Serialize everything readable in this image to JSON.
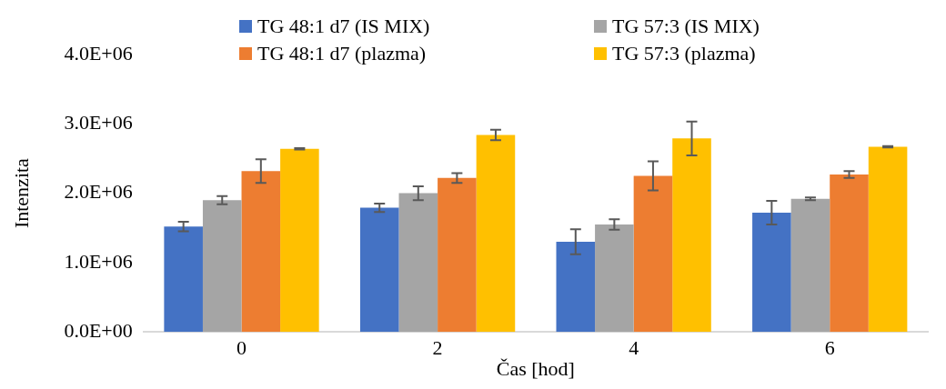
{
  "chart_data": {
    "type": "bar",
    "xlabel": "Čas [hod]",
    "ylabel": "Intenzita",
    "categories": [
      "0",
      "2",
      "4",
      "6"
    ],
    "series": [
      {
        "name": "TG 48:1 d7 (IS MIX)",
        "color": "#4472c4",
        "values": [
          1520000,
          1790000,
          1300000,
          1720000
        ],
        "errors": [
          70000,
          60000,
          180000,
          170000
        ]
      },
      {
        "name": "TG 57:3 (IS MIX)",
        "color": "#a5a5a5",
        "values": [
          1900000,
          2000000,
          1550000,
          1920000
        ],
        "errors": [
          60000,
          100000,
          75000,
          20000
        ]
      },
      {
        "name": "TG 48:1 d7 (plazma)",
        "color": "#ed7d31",
        "values": [
          2320000,
          2220000,
          2250000,
          2270000
        ],
        "errors": [
          170000,
          70000,
          210000,
          50000
        ]
      },
      {
        "name": "TG 57:3 (plazma)",
        "color": "#ffc000",
        "values": [
          2640000,
          2840000,
          2790000,
          2670000
        ],
        "errors": [
          10000,
          75000,
          245000,
          10000
        ]
      }
    ],
    "ylim": [
      0,
      4000000
    ],
    "yticks": [
      {
        "value": 0,
        "label": "0.0E+00"
      },
      {
        "value": 1000000,
        "label": "1.0E+06"
      },
      {
        "value": 2000000,
        "label": "2.0E+06"
      },
      {
        "value": 3000000,
        "label": "3.0E+06"
      },
      {
        "value": 4000000,
        "label": "4.0E+06"
      }
    ],
    "grid": false,
    "legend": "top"
  }
}
